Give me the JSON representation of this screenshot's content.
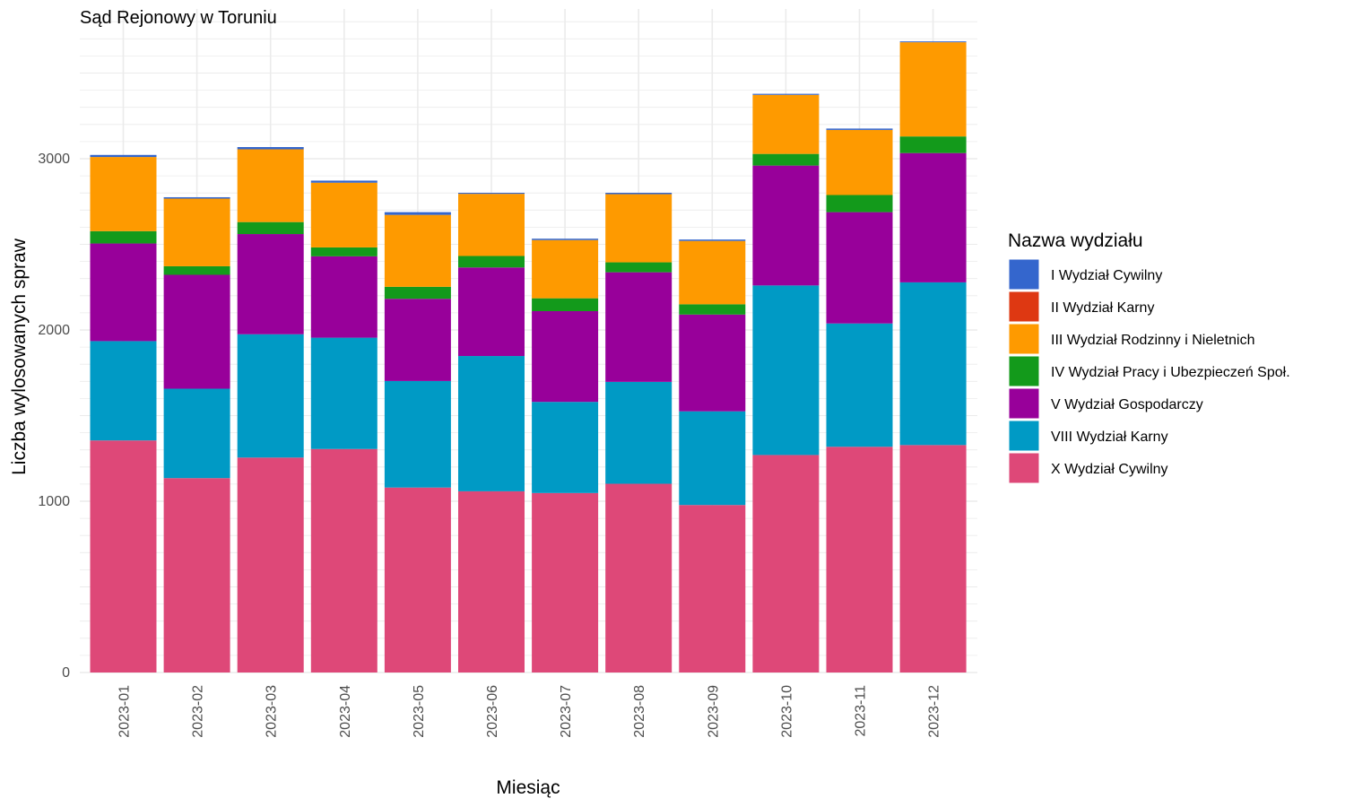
{
  "chart_data": {
    "type": "bar",
    "stacked": true,
    "title": "Sąd Rejonowy w Toruniu",
    "xlabel": "Miesiąc",
    "ylabel": "Liczba wylosowanych spraw",
    "ylim": [
      0,
      3800
    ],
    "y_ticks": [
      "0",
      "1000",
      "2000",
      "3000"
    ],
    "grid": true,
    "legend_title": "Nazwa wydziału",
    "legend_position": "right",
    "categories": [
      "2023-01",
      "2023-02",
      "2023-03",
      "2023-04",
      "2023-05",
      "2023-06",
      "2023-07",
      "2023-08",
      "2023-09",
      "2023-10",
      "2023-11",
      "2023-12"
    ],
    "series": [
      {
        "name": "X Wydział Cywilny",
        "color": "#DE4878",
        "values": [
          1355,
          1135,
          1255,
          1305,
          1080,
          1058,
          1048,
          1102,
          978,
          1270,
          1318,
          1328
        ]
      },
      {
        "name": "VIII Wydział Karny",
        "color": "#009AC5",
        "values": [
          580,
          522,
          720,
          650,
          622,
          790,
          532,
          595,
          547,
          990,
          720,
          950
        ]
      },
      {
        "name": "V Wydział Gospodarczy",
        "color": "#98009A",
        "values": [
          570,
          665,
          585,
          475,
          480,
          517,
          530,
          640,
          565,
          700,
          650,
          755
        ]
      },
      {
        "name": "IV Wydział Pracy i Ubezpieczeń Społ.",
        "color": "#139A1B",
        "values": [
          72,
          50,
          70,
          52,
          70,
          67,
          75,
          58,
          60,
          68,
          100,
          97
        ]
      },
      {
        "name": "III Wydział Rodzinny i Nieletnich",
        "color": "#FE9A00",
        "values": [
          433,
          395,
          425,
          378,
          420,
          363,
          340,
          398,
          370,
          345,
          380,
          550
        ]
      },
      {
        "name": "II Wydział Karny",
        "color": "#DE3812",
        "values": [
          0,
          0,
          0,
          0,
          0,
          0,
          0,
          0,
          0,
          0,
          0,
          0
        ]
      },
      {
        "name": "I Wydział Cywilny",
        "color": "#3466CD",
        "values": [
          12,
          8,
          13,
          12,
          16,
          6,
          8,
          8,
          8,
          6,
          8,
          5
        ]
      }
    ],
    "legend_order": [
      "I Wydział Cywilny",
      "II Wydział Karny",
      "III Wydział Rodzinny i Nieletnich",
      "IV Wydział Pracy i Ubezpieczeń Społ.",
      "V Wydział Gospodarczy",
      "VIII Wydział Karny",
      "X Wydział Cywilny"
    ]
  }
}
